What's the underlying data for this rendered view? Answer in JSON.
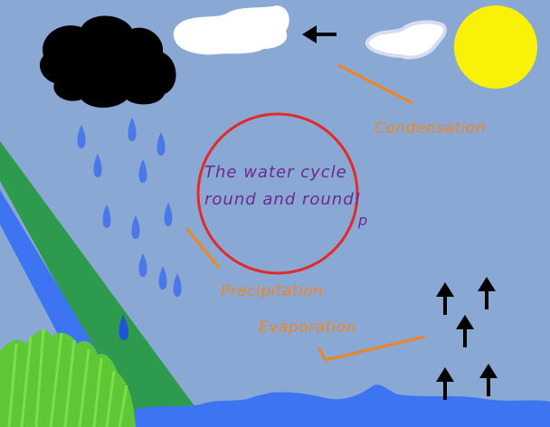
{
  "diagram": {
    "title_lines": [
      "The water cycle",
      "round and round!"
    ],
    "title_mark": "p",
    "labels": {
      "condensation": "Condensation",
      "precipitation": "Precipitation",
      "evaporation": "Evaporation"
    }
  },
  "colors": {
    "sky": "#8aa8d4",
    "sun": "#f9f208",
    "circle": "#e12b2b",
    "label": "#f0841e",
    "title": "#6a2a8c",
    "water": "#3c74f2",
    "land": "#2d9a4d",
    "grass": "#5ec735",
    "raindrop": "#4b78e8"
  },
  "icons": [
    "black-cloud-icon",
    "white-cloud-icon",
    "sun-icon",
    "raindrop-icon",
    "arrow-up-icon",
    "arrow-left-icon"
  ]
}
